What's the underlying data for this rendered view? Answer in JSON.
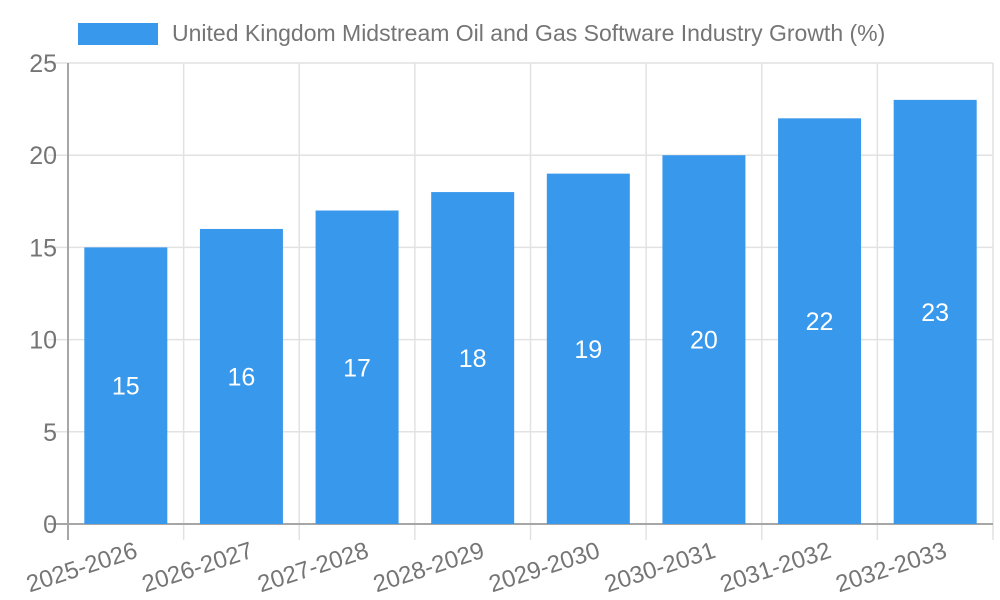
{
  "legend": {
    "label": "United Kingdom Midstream Oil and Gas Software Industry Growth (%)",
    "swatch_color": "#3898ec"
  },
  "chart_data": {
    "type": "bar",
    "title": "United Kingdom Midstream Oil and Gas Software Industry Growth (%)",
    "categories": [
      "2025-2026",
      "2026-2027",
      "2027-2028",
      "2028-2029",
      "2029-2030",
      "2030-2031",
      "2031-2032",
      "2032-2033"
    ],
    "values": [
      15,
      16,
      17,
      18,
      19,
      20,
      22,
      23
    ],
    "xlabel": "",
    "ylabel": "",
    "ylim": [
      0,
      25
    ],
    "yticks": [
      0,
      5,
      10,
      15,
      20,
      25
    ],
    "grid": true,
    "legend_position": "top",
    "bar_color": "#3898ec",
    "bar_label_color": "#ffffff",
    "axis_text_color": "#757575",
    "grid_color": "#e2e2e2",
    "axis_line_color": "#a6a6a6"
  }
}
